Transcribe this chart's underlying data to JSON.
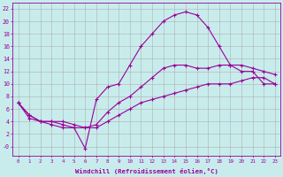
{
  "xlabel": "Windchill (Refroidissement éolien,°C)",
  "bg_color": "#c8ecec",
  "line_color": "#990099",
  "grid_color": "#b0b0b0",
  "xlim": [
    -0.5,
    23.5
  ],
  "ylim": [
    -1.5,
    23
  ],
  "xticks": [
    0,
    1,
    2,
    3,
    4,
    5,
    6,
    7,
    8,
    9,
    10,
    11,
    12,
    13,
    14,
    15,
    16,
    17,
    18,
    19,
    20,
    21,
    22,
    23
  ],
  "yticks": [
    0,
    2,
    4,
    6,
    8,
    10,
    12,
    14,
    16,
    18,
    20,
    22
  ],
  "ytick_labels": [
    "-0",
    "2",
    "4",
    "6",
    "8",
    "10",
    "12",
    "14",
    "16",
    "18",
    "20",
    "22"
  ],
  "line1_x": [
    0,
    1,
    2,
    3,
    4,
    5,
    6,
    7,
    8,
    9,
    10,
    11,
    12,
    13,
    14,
    15,
    16,
    17,
    18,
    19,
    20,
    21,
    22,
    23
  ],
  "line1_y": [
    7,
    5,
    4,
    4,
    3.5,
    3,
    -0.3,
    7.5,
    9.5,
    10,
    13,
    16,
    18,
    20,
    21,
    21.5,
    21,
    19,
    16,
    13,
    12,
    12,
    10,
    10
  ],
  "line2_x": [
    0,
    1,
    2,
    3,
    4,
    5,
    6,
    7,
    8,
    9,
    10,
    11,
    12,
    13,
    14,
    15,
    16,
    17,
    18,
    19,
    20,
    21,
    22,
    23
  ],
  "line2_y": [
    7,
    5,
    4,
    4,
    4,
    3.5,
    3,
    3.5,
    5.5,
    7,
    8,
    9.5,
    11,
    12.5,
    13,
    13,
    12.5,
    12.5,
    13,
    13,
    13,
    12.5,
    12,
    11.5
  ],
  "line3_x": [
    0,
    1,
    2,
    3,
    4,
    5,
    6,
    7,
    8,
    9,
    10,
    11,
    12,
    13,
    14,
    15,
    16,
    17,
    18,
    19,
    20,
    21,
    22,
    23
  ],
  "line3_y": [
    7,
    4.5,
    4,
    3.5,
    3,
    3,
    3,
    3,
    4,
    5,
    6,
    7,
    7.5,
    8,
    8.5,
    9,
    9.5,
    10,
    10,
    10,
    10.5,
    11,
    11,
    10
  ]
}
